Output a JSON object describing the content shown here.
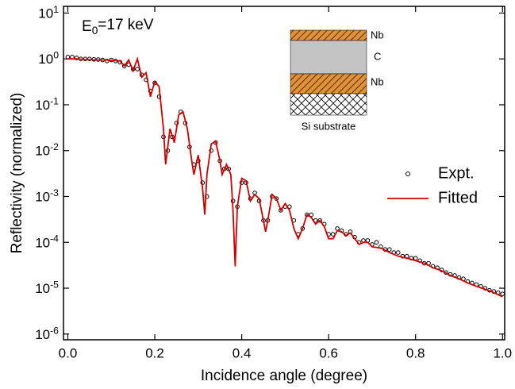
{
  "chart_data": {
    "type": "scatter-line",
    "annotation": "E_0=17 keV",
    "x_label": "Incidence angle (degree)",
    "y_label": "Reflectivity (normalized)",
    "log_y": true,
    "xlim": [
      -0.01,
      1.005
    ],
    "ylim": [
      7.5e-07,
      14
    ],
    "xticks": [
      {
        "value": 0,
        "label": "0.0"
      },
      0.2,
      0.4,
      0.6,
      0.8,
      {
        "value": 1,
        "label": "1.0"
      }
    ],
    "yticks": [
      {
        "value": 1e-06,
        "label": "10^-6"
      },
      {
        "value": 1e-05,
        "label": "10^-5"
      },
      {
        "value": 0.0001,
        "label": "10^-4"
      },
      {
        "value": 0.001,
        "label": "10^-3"
      },
      {
        "value": 0.01,
        "label": "10^-2"
      },
      {
        "value": 0.1,
        "label": "10^-1"
      },
      {
        "value": 1,
        "label": "10^0"
      },
      {
        "value": 10,
        "label": "10^1"
      }
    ],
    "inset_labels": [
      "Nb",
      "C",
      "Nb",
      "Si substrate"
    ],
    "series": [
      {
        "name": "Expt.",
        "style": "points",
        "color": "#000000",
        "x": [
          0.0,
          0.01,
          0.02,
          0.03,
          0.04,
          0.05,
          0.06,
          0.07,
          0.08,
          0.09,
          0.1,
          0.11,
          0.12,
          0.13,
          0.14,
          0.15,
          0.16,
          0.17,
          0.18,
          0.19,
          0.2,
          0.21,
          0.22,
          0.23,
          0.24,
          0.25,
          0.26,
          0.27,
          0.28,
          0.29,
          0.3,
          0.31,
          0.32,
          0.33,
          0.34,
          0.35,
          0.36,
          0.37,
          0.38,
          0.39,
          0.4,
          0.41,
          0.42,
          0.43,
          0.44,
          0.45,
          0.46,
          0.47,
          0.48,
          0.49,
          0.5,
          0.51,
          0.52,
          0.53,
          0.54,
          0.55,
          0.56,
          0.57,
          0.58,
          0.59,
          0.6,
          0.61,
          0.62,
          0.63,
          0.64,
          0.65,
          0.66,
          0.67,
          0.68,
          0.69,
          0.7,
          0.71,
          0.72,
          0.73,
          0.74,
          0.75,
          0.76,
          0.77,
          0.78,
          0.79,
          0.8,
          0.81,
          0.82,
          0.83,
          0.84,
          0.85,
          0.86,
          0.87,
          0.88,
          0.89,
          0.9,
          0.91,
          0.92,
          0.93,
          0.94,
          0.95,
          0.96,
          0.97,
          0.98,
          0.99,
          1.0
        ],
        "values": [
          1.1,
          1.1,
          1.05,
          1.0,
          1.0,
          1.0,
          0.98,
          0.97,
          0.95,
          0.9,
          0.95,
          0.9,
          0.85,
          0.7,
          0.75,
          0.6,
          0.6,
          0.45,
          0.35,
          0.2,
          0.3,
          0.15,
          0.02,
          0.01,
          0.02,
          0.04,
          0.07,
          0.04,
          0.012,
          0.005,
          0.006,
          0.002,
          0.001,
          0.01,
          0.015,
          0.006,
          0.004,
          0.004,
          0.0008,
          0.0006,
          0.002,
          0.002,
          0.0009,
          0.0012,
          0.0008,
          0.0003,
          0.0003,
          0.001,
          0.0009,
          0.0005,
          0.0006,
          0.0006,
          0.0003,
          0.00015,
          0.0002,
          0.0004,
          0.0004,
          0.0003,
          0.0003,
          0.00025,
          0.00015,
          0.00015,
          0.0002,
          0.00018,
          0.00015,
          0.00017,
          0.00013,
          0.0001,
          0.00011,
          0.00011,
          9e-05,
          0.0001,
          8e-05,
          7e-05,
          7e-05,
          6e-05,
          6e-05,
          5e-05,
          5e-05,
          4.5e-05,
          4.5e-05,
          4e-05,
          3.5e-05,
          3.5e-05,
          3e-05,
          2.8e-05,
          2.5e-05,
          2.2e-05,
          2e-05,
          1.9e-05,
          1.7e-05,
          1.6e-05,
          1.4e-05,
          1.3e-05,
          1.2e-05,
          1.1e-05,
          1e-05,
          9e-06,
          8.5e-06,
          8e-06,
          7.5e-06
        ]
      },
      {
        "name": "Fitted",
        "style": "line",
        "color": "#d40000",
        "x": [
          0.0,
          0.02,
          0.04,
          0.06,
          0.08,
          0.1,
          0.12,
          0.13,
          0.14,
          0.15,
          0.16,
          0.17,
          0.18,
          0.19,
          0.2,
          0.21,
          0.22,
          0.225,
          0.235,
          0.245,
          0.255,
          0.265,
          0.275,
          0.285,
          0.29,
          0.3,
          0.31,
          0.315,
          0.32,
          0.33,
          0.34,
          0.35,
          0.355,
          0.365,
          0.375,
          0.38,
          0.385,
          0.39,
          0.4,
          0.41,
          0.42,
          0.43,
          0.44,
          0.45,
          0.455,
          0.46,
          0.47,
          0.48,
          0.49,
          0.5,
          0.51,
          0.52,
          0.53,
          0.54,
          0.55,
          0.56,
          0.57,
          0.58,
          0.59,
          0.6,
          0.61,
          0.62,
          0.63,
          0.64,
          0.65,
          0.66,
          0.67,
          0.68,
          0.69,
          0.7,
          0.72,
          0.74,
          0.76,
          0.78,
          0.8,
          0.82,
          0.84,
          0.86,
          0.88,
          0.9,
          0.92,
          0.94,
          0.96,
          0.98,
          1.0
        ],
        "values": [
          1.0,
          1.0,
          0.97,
          0.95,
          0.95,
          0.93,
          0.9,
          0.7,
          0.95,
          0.55,
          1.0,
          0.4,
          0.5,
          0.15,
          0.32,
          0.25,
          0.03,
          0.005,
          0.03,
          0.015,
          0.06,
          0.07,
          0.03,
          0.006,
          0.003,
          0.008,
          0.0015,
          0.0004,
          0.003,
          0.014,
          0.016,
          0.006,
          0.003,
          0.005,
          0.003,
          0.0005,
          3e-05,
          0.0006,
          0.0025,
          0.0022,
          0.0008,
          0.0011,
          0.0009,
          0.0003,
          0.00017,
          0.0003,
          0.0011,
          0.0009,
          0.0005,
          0.0007,
          0.0005,
          0.0002,
          0.00012,
          0.0002,
          0.0004,
          0.00035,
          0.00025,
          0.0003,
          0.00022,
          0.00012,
          0.00012,
          0.00018,
          0.00017,
          0.00014,
          0.00016,
          0.00012,
          9e-05,
          0.0001,
          0.0001,
          8e-05,
          7.5e-05,
          6e-05,
          5e-05,
          4.5e-05,
          4e-05,
          3.5e-05,
          2.8e-05,
          2.4e-05,
          1.9e-05,
          1.6e-05,
          1.3e-05,
          1.1e-05,
          9.5e-06,
          8e-06,
          6.5e-06
        ]
      }
    ]
  }
}
